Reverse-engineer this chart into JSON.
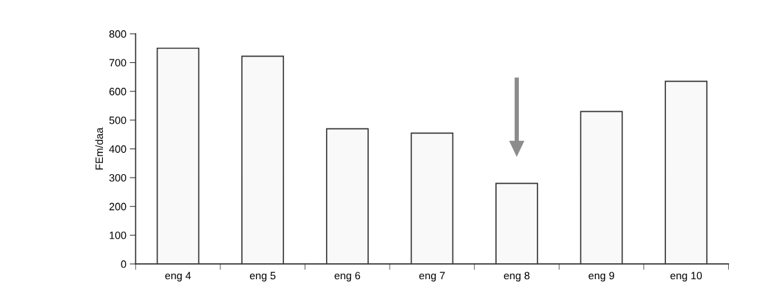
{
  "chart_data": {
    "type": "bar",
    "ylabel": "FEm/daa",
    "categories": [
      "eng 4",
      "eng 5",
      "eng 6",
      "eng 7",
      "eng 8",
      "eng 9",
      "eng 10"
    ],
    "values": [
      750,
      722,
      470,
      455,
      280,
      530,
      635
    ],
    "color": "#f9f9f9",
    "ylim": [
      0,
      800
    ],
    "yticks": [
      0,
      100,
      200,
      300,
      400,
      500,
      600,
      700,
      800
    ],
    "grid": false
  }
}
